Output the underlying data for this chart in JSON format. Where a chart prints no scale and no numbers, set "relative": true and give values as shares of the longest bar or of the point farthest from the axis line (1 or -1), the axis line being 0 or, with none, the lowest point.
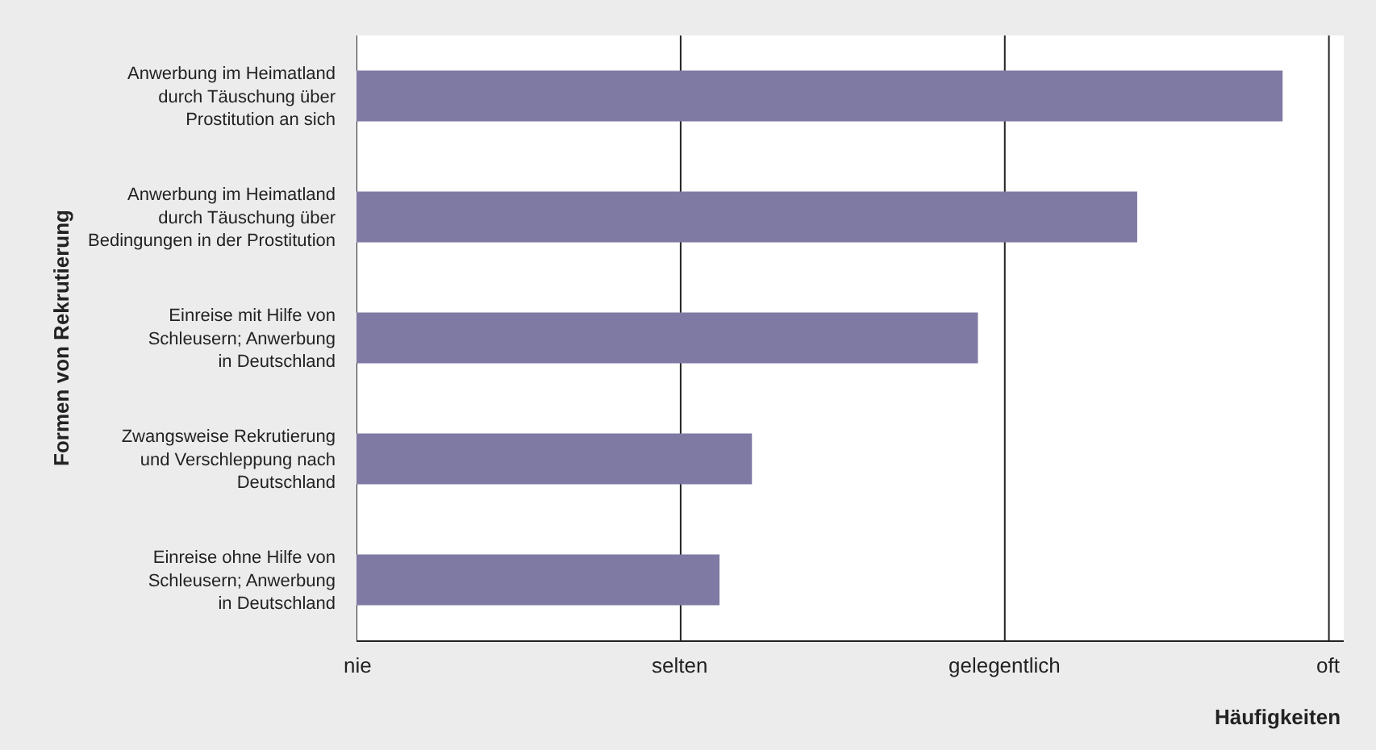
{
  "chart_data": {
    "type": "bar",
    "orientation": "horizontal",
    "relative": true,
    "ylabel": "Formen von Rekrutierung",
    "xlabel": "Häufigkeiten",
    "categories": [
      "Anwerbung im Heimatland\ndurch Täuschung über\nProstitution an sich",
      "Anwerbung im Heimatland\ndurch Täuschung über\nBedingungen in der Prostitution",
      "Einreise mit Hilfe von\nSchleusern; Anwerbung\nin Deutschland",
      "Zwangsweise Rekrutierung\nund Verschleppung nach\nDeutschland",
      "Einreise ohne Hilfe von\nSchleusern; Anwerbung\nin Deutschland"
    ],
    "values": [
      1,
      0.843,
      0.671,
      0.427,
      0.392
    ],
    "color": "#7f7aa3",
    "ref_lines": [
      {
        "axis": "x",
        "value": 0,
        "label": "nie"
      },
      {
        "axis": "x",
        "value": 0.35,
        "label": "selten"
      },
      {
        "axis": "x",
        "value": 0.7,
        "label": "gelegentlich"
      },
      {
        "axis": "x",
        "value": 1.05,
        "label": "oft"
      }
    ]
  }
}
